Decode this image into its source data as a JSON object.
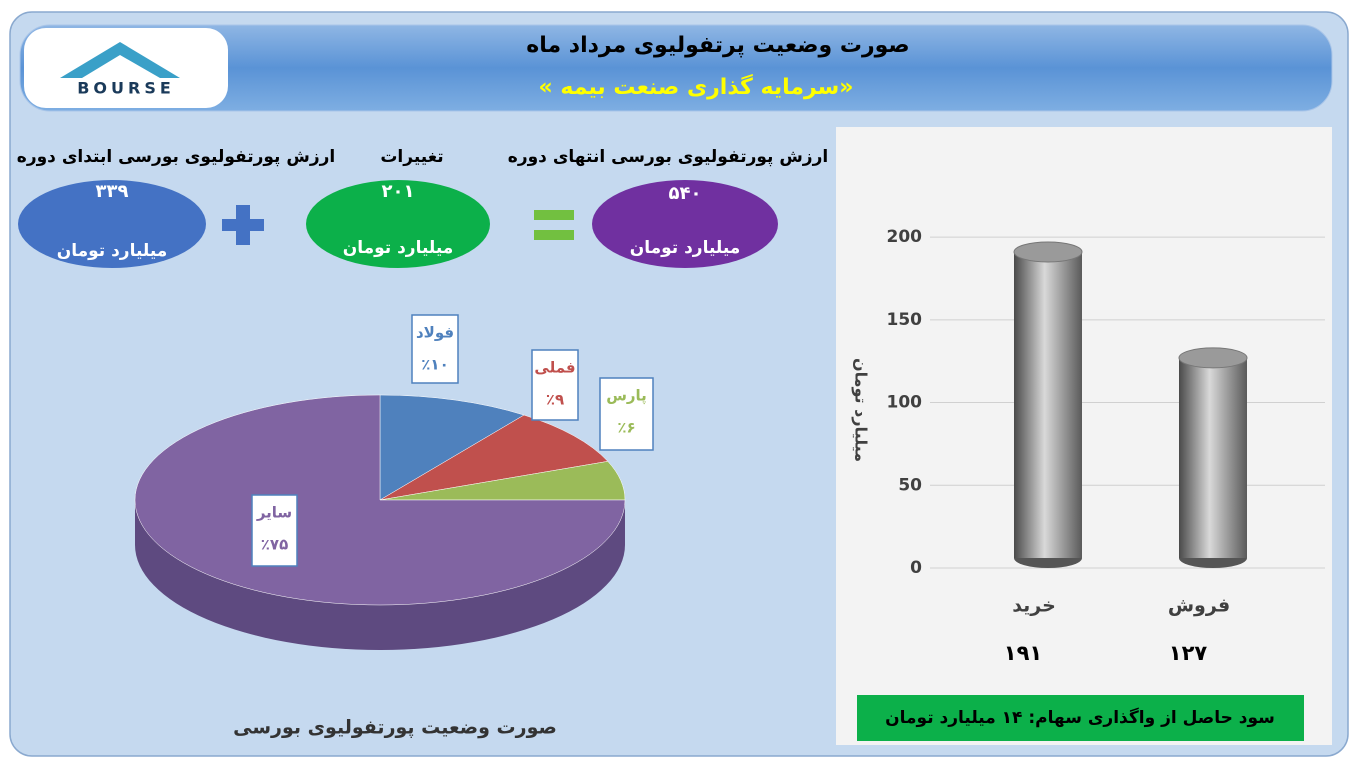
{
  "header": {
    "title": "صورت وضعیت پرتفولیوی مرداد ماه",
    "subtitle": "«سرمایه گذاری صنعت بیمه »",
    "logo": "BOURSE"
  },
  "summary": [
    {
      "label": "ارزش پورتفولیوی بورسی ابتدای دوره",
      "value": "۳۳۹",
      "unit": "میلیارد تومان"
    },
    {
      "label": "تغییرات",
      "value": "۲۰۱",
      "unit": "میلیارد تومان"
    },
    {
      "label": "ارزش پورتفولیوی بورسی انتهای دوره",
      "value": "۵۴۰",
      "unit": "میلیارد تومان"
    }
  ],
  "chart_data": [
    {
      "type": "pie",
      "title": "صورت وضعیت پورتفولیوی بورسی",
      "categories": [
        "فولاد",
        "فملی",
        "پارس",
        "سایر"
      ],
      "values": [
        10,
        9,
        6,
        75
      ],
      "value_labels": [
        "٪۱۰",
        "٪۹",
        "٪۶",
        "٪۷۵"
      ],
      "colors": [
        "#4f81bd",
        "#c0504d",
        "#9bbb59",
        "#8064a2"
      ]
    },
    {
      "type": "bar",
      "ylabel": "میلیارد تومان",
      "categories": [
        "خرید",
        "فروش"
      ],
      "values": [
        191,
        127
      ],
      "value_labels": [
        "۱۹۱",
        "۱۲۷"
      ],
      "ylim": [
        0,
        220
      ],
      "yticks": [
        0,
        50,
        100,
        150,
        200
      ],
      "grid": true,
      "color": "#808080"
    }
  ],
  "note": "سود حاصل از واگذاری سهام: ۱۴ میلیارد تومان"
}
